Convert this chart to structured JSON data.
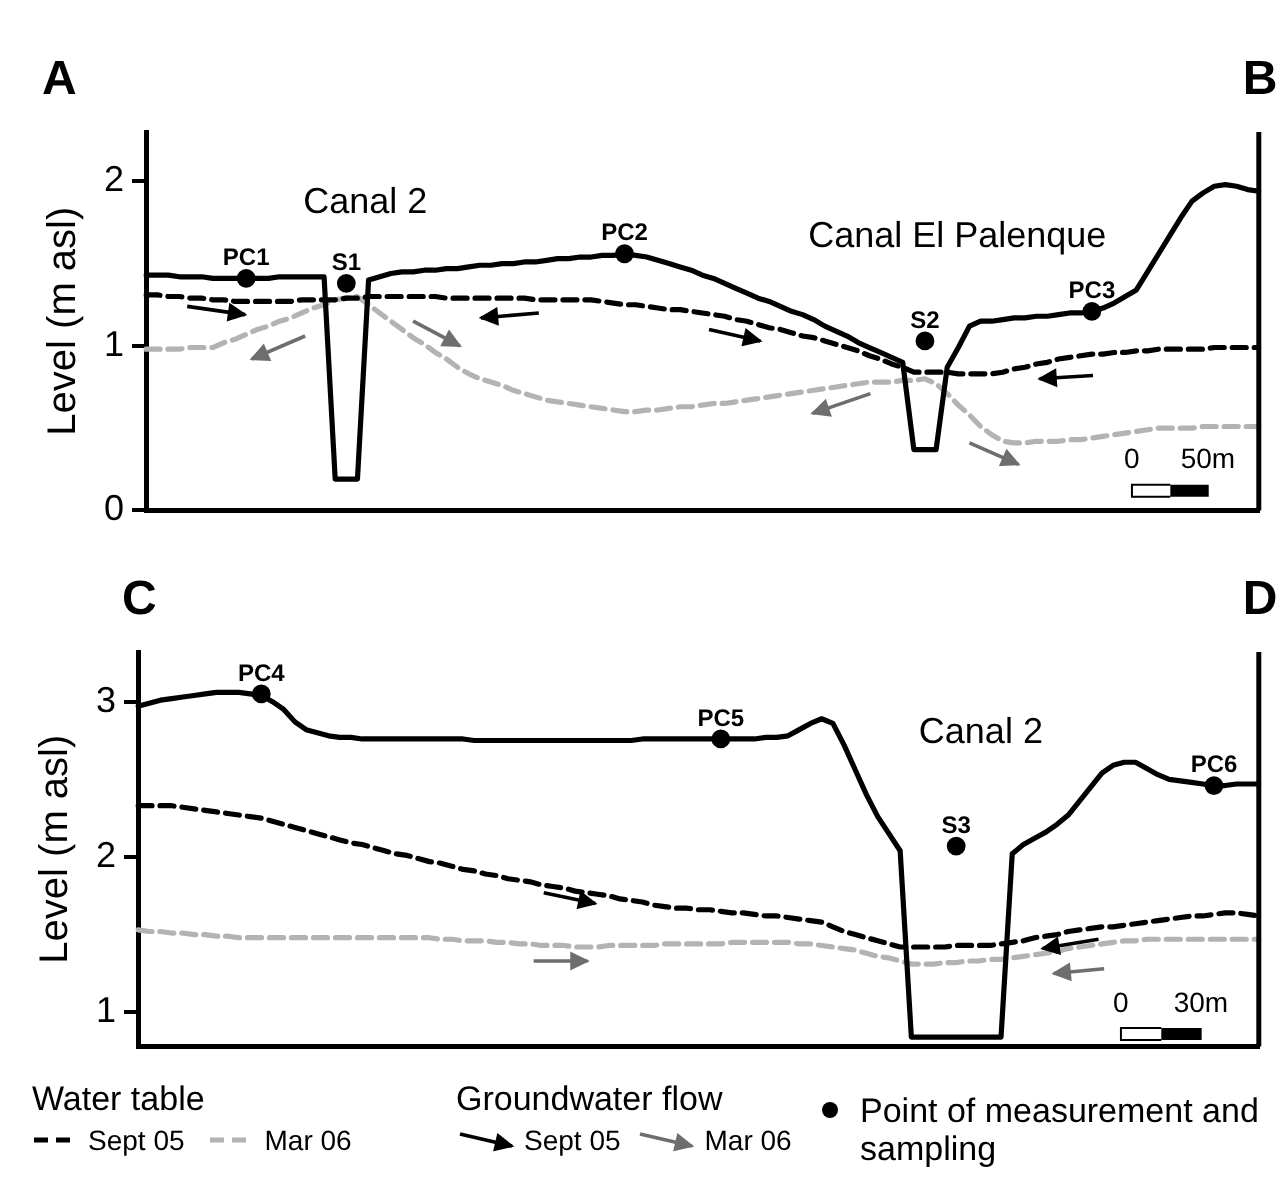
{
  "chart_data": [
    {
      "type": "line",
      "ylabel": "Level (m asl)",
      "categories": [
        null,
        null,
        null,
        null,
        null,
        null,
        null,
        null,
        null,
        null,
        null,
        null,
        null,
        null,
        null,
        null,
        null,
        null,
        null,
        null,
        null,
        null,
        null,
        null,
        null,
        null,
        null,
        null,
        null,
        null,
        null,
        null,
        null,
        null,
        null,
        null,
        null,
        null,
        null,
        null,
        null,
        null,
        null,
        null,
        null,
        null,
        null,
        null,
        null,
        null,
        null,
        null,
        null,
        null,
        null,
        null,
        null,
        null,
        null,
        null,
        null,
        null,
        null,
        null,
        null,
        null,
        null,
        null,
        null,
        null,
        null,
        null,
        null,
        null,
        null,
        null,
        null,
        null,
        null,
        null,
        null,
        null,
        null,
        null,
        null,
        null,
        null,
        null,
        null,
        null,
        null,
        null,
        null,
        null,
        null,
        null,
        null,
        null,
        null,
        null,
        null
      ],
      "ylim": [
        0,
        2.3
      ],
      "yticks": [
        0,
        1,
        2
      ],
      "tick_labels": "y",
      "grid": false,
      "series": [
        {
          "color": "#000000",
          "line_style": "solid",
          "marker": "none",
          "values": [
            1.43,
            1.43,
            1.43,
            1.42,
            1.42,
            1.42,
            1.41,
            1.41,
            1.41,
            1.41,
            1.41,
            1.41,
            1.42,
            1.42,
            1.42,
            1.42,
            1.42,
            0.19,
            0.19,
            0.19,
            1.4,
            1.42,
            1.44,
            1.45,
            1.45,
            1.46,
            1.46,
            1.47,
            1.47,
            1.48,
            1.49,
            1.49,
            1.5,
            1.5,
            1.51,
            1.51,
            1.52,
            1.53,
            1.53,
            1.54,
            1.54,
            1.55,
            1.55,
            1.56,
            1.55,
            1.54,
            1.52,
            1.5,
            1.48,
            1.46,
            1.43,
            1.41,
            1.38,
            1.35,
            1.32,
            1.29,
            1.27,
            1.24,
            1.21,
            1.19,
            1.16,
            1.12,
            1.09,
            1.06,
            1.02,
            0.99,
            0.96,
            0.93,
            0.9,
            0.37,
            0.37,
            0.37,
            0.87,
            0.99,
            1.12,
            1.15,
            1.15,
            1.16,
            1.17,
            1.17,
            1.18,
            1.18,
            1.19,
            1.2,
            1.2,
            1.21,
            1.23,
            1.26,
            1.3,
            1.34,
            1.45,
            1.56,
            1.67,
            1.78,
            1.88,
            1.93,
            1.97,
            1.98,
            1.97,
            1.95,
            1.94
          ]
        },
        {
          "color": "#000000",
          "line_style": "dashed",
          "marker": "none",
          "values": [
            1.31,
            1.31,
            1.3,
            1.3,
            1.29,
            1.29,
            1.28,
            1.28,
            1.27,
            1.27,
            1.27,
            1.27,
            1.27,
            1.27,
            1.28,
            1.28,
            1.28,
            1.28,
            1.29,
            1.29,
            1.3,
            1.3,
            1.3,
            1.3,
            1.3,
            1.3,
            1.3,
            1.29,
            1.29,
            1.29,
            1.29,
            1.29,
            1.29,
            1.29,
            1.29,
            1.28,
            1.28,
            1.28,
            1.28,
            1.28,
            1.28,
            1.27,
            1.26,
            1.25,
            1.25,
            1.24,
            1.23,
            1.22,
            1.22,
            1.21,
            1.2,
            1.19,
            1.18,
            1.16,
            1.15,
            1.13,
            1.11,
            1.1,
            1.08,
            1.06,
            1.05,
            1.03,
            1.01,
            0.99,
            0.97,
            0.94,
            0.92,
            0.89,
            0.87,
            0.84,
            0.84,
            0.84,
            0.84,
            0.83,
            0.83,
            0.83,
            0.83,
            0.84,
            0.86,
            0.87,
            0.89,
            0.9,
            0.92,
            0.93,
            0.94,
            0.95,
            0.95,
            0.96,
            0.96,
            0.97,
            0.97,
            0.98,
            0.98,
            0.98,
            0.98,
            0.98,
            0.99,
            0.99,
            0.99,
            0.99,
            0.99
          ]
        },
        {
          "color": "#b3b3b3",
          "line_style": "dashed",
          "marker": "none",
          "values": [
            0.98,
            0.98,
            0.98,
            0.98,
            0.99,
            0.99,
            0.99,
            1.02,
            1.04,
            1.07,
            1.1,
            1.12,
            1.15,
            1.17,
            1.2,
            1.23,
            1.25,
            1.28,
            1.29,
            1.3,
            1.25,
            1.2,
            1.15,
            1.1,
            1.05,
            1.01,
            0.96,
            0.92,
            0.87,
            0.83,
            0.8,
            0.78,
            0.76,
            0.73,
            0.71,
            0.69,
            0.67,
            0.66,
            0.65,
            0.64,
            0.63,
            0.62,
            0.61,
            0.6,
            0.6,
            0.61,
            0.61,
            0.62,
            0.63,
            0.63,
            0.64,
            0.65,
            0.65,
            0.66,
            0.67,
            0.68,
            0.69,
            0.7,
            0.71,
            0.72,
            0.73,
            0.74,
            0.75,
            0.76,
            0.77,
            0.78,
            0.78,
            0.78,
            0.79,
            0.79,
            0.8,
            0.77,
            0.71,
            0.64,
            0.58,
            0.51,
            0.46,
            0.42,
            0.41,
            0.41,
            0.42,
            0.42,
            0.42,
            0.43,
            0.43,
            0.44,
            0.45,
            0.46,
            0.47,
            0.48,
            0.49,
            0.5,
            0.5,
            0.5,
            0.5,
            0.51,
            0.51,
            0.51,
            0.51,
            0.51,
            0.51
          ]
        },
        {
          "color": "#000000",
          "marker": "circle",
          "values": [
            null,
            null,
            null,
            null,
            null,
            null,
            null,
            null,
            null,
            1.41,
            null,
            null,
            null,
            null,
            null,
            null,
            null,
            null,
            1.38,
            null,
            null,
            null,
            null,
            null,
            null,
            null,
            null,
            null,
            null,
            null,
            null,
            null,
            null,
            null,
            null,
            null,
            null,
            null,
            null,
            null,
            null,
            null,
            null,
            1.56,
            null,
            null,
            null,
            null,
            null,
            null,
            null,
            null,
            null,
            null,
            null,
            null,
            null,
            null,
            null,
            null,
            null,
            null,
            null,
            null,
            null,
            null,
            null,
            null,
            null,
            null,
            1.03,
            null,
            null,
            null,
            null,
            null,
            null,
            null,
            null,
            null,
            null,
            null,
            null,
            null,
            null,
            1.21,
            null,
            null,
            null,
            null,
            null,
            null,
            null,
            null,
            null,
            null,
            null,
            null,
            null,
            null,
            null
          ]
        }
      ],
      "annotations": [
        "A",
        "B",
        "0",
        "50m",
        "Canal 2",
        "Canal El Palenque",
        "PC1",
        "S1",
        "PC2",
        "S2",
        "PC3"
      ]
    },
    {
      "type": "line",
      "ylabel": "Level (m asl)",
      "categories": [
        null,
        null,
        null,
        null,
        null,
        null,
        null,
        null,
        null,
        null,
        null,
        null,
        null,
        null,
        null,
        null,
        null,
        null,
        null,
        null,
        null,
        null,
        null,
        null,
        null,
        null,
        null,
        null,
        null,
        null,
        null,
        null,
        null,
        null,
        null,
        null,
        null,
        null,
        null,
        null,
        null,
        null,
        null,
        null,
        null,
        null,
        null,
        null,
        null,
        null,
        null,
        null,
        null,
        null,
        null,
        null,
        null,
        null,
        null,
        null,
        null,
        null,
        null,
        null,
        null,
        null,
        null,
        null,
        null,
        null,
        null,
        null,
        null,
        null,
        null,
        null,
        null,
        null,
        null,
        null,
        null,
        null,
        null,
        null,
        null,
        null,
        null,
        null,
        null,
        null,
        null,
        null,
        null,
        null,
        null,
        null,
        null,
        null,
        null,
        null,
        null
      ],
      "ylim": [
        0.78,
        3.32
      ],
      "yticks": [
        1,
        2,
        3
      ],
      "tick_labels": "y",
      "grid": false,
      "legend": "bottom",
      "legend_title": "Water table",
      "series": [
        {
          "color": "#000000",
          "line_style": "solid",
          "marker": "none",
          "values": [
            2.97,
            2.99,
            3.01,
            3.02,
            3.03,
            3.04,
            3.05,
            3.06,
            3.06,
            3.06,
            3.05,
            3.04,
            3.0,
            2.95,
            2.87,
            2.82,
            2.8,
            2.78,
            2.77,
            2.77,
            2.76,
            2.76,
            2.76,
            2.76,
            2.76,
            2.76,
            2.76,
            2.76,
            2.76,
            2.76,
            2.75,
            2.75,
            2.75,
            2.75,
            2.75,
            2.75,
            2.75,
            2.75,
            2.75,
            2.75,
            2.75,
            2.75,
            2.75,
            2.75,
            2.75,
            2.76,
            2.76,
            2.76,
            2.76,
            2.76,
            2.76,
            2.76,
            2.76,
            2.76,
            2.76,
            2.76,
            2.77,
            2.77,
            2.78,
            2.82,
            2.86,
            2.89,
            2.86,
            2.72,
            2.56,
            2.4,
            2.26,
            2.15,
            2.04,
            0.84,
            0.84,
            0.84,
            0.84,
            0.84,
            0.84,
            0.84,
            0.84,
            0.84,
            2.02,
            2.08,
            2.12,
            2.16,
            2.21,
            2.27,
            2.36,
            2.45,
            2.54,
            2.59,
            2.61,
            2.61,
            2.57,
            2.53,
            2.5,
            2.49,
            2.48,
            2.47,
            2.46,
            2.46,
            2.47,
            2.47,
            2.47
          ]
        },
        {
          "name": "Sept 05",
          "color": "#000000",
          "line_style": "dashed",
          "marker": "none",
          "values": [
            2.33,
            2.33,
            2.33,
            2.33,
            2.32,
            2.31,
            2.3,
            2.29,
            2.28,
            2.27,
            2.26,
            2.25,
            2.23,
            2.21,
            2.19,
            2.17,
            2.15,
            2.13,
            2.11,
            2.09,
            2.08,
            2.06,
            2.04,
            2.02,
            2.01,
            1.99,
            1.97,
            1.96,
            1.94,
            1.92,
            1.91,
            1.89,
            1.88,
            1.86,
            1.85,
            1.84,
            1.82,
            1.81,
            1.8,
            1.78,
            1.77,
            1.76,
            1.75,
            1.73,
            1.72,
            1.71,
            1.69,
            1.68,
            1.67,
            1.67,
            1.66,
            1.66,
            1.65,
            1.64,
            1.64,
            1.63,
            1.62,
            1.62,
            1.61,
            1.6,
            1.59,
            1.58,
            1.55,
            1.52,
            1.5,
            1.48,
            1.46,
            1.44,
            1.42,
            1.42,
            1.42,
            1.42,
            1.42,
            1.43,
            1.43,
            1.43,
            1.43,
            1.44,
            1.45,
            1.46,
            1.48,
            1.49,
            1.5,
            1.52,
            1.53,
            1.54,
            1.55,
            1.55,
            1.56,
            1.57,
            1.58,
            1.59,
            1.6,
            1.61,
            1.62,
            1.62,
            1.63,
            1.64,
            1.64,
            1.63,
            1.62
          ]
        },
        {
          "name": "Mar 06",
          "color": "#b3b3b3",
          "line_style": "dashed",
          "marker": "none",
          "values": [
            1.53,
            1.52,
            1.52,
            1.51,
            1.51,
            1.5,
            1.5,
            1.49,
            1.49,
            1.48,
            1.48,
            1.48,
            1.48,
            1.48,
            1.48,
            1.48,
            1.48,
            1.48,
            1.48,
            1.48,
            1.48,
            1.48,
            1.48,
            1.48,
            1.48,
            1.48,
            1.48,
            1.47,
            1.47,
            1.46,
            1.46,
            1.46,
            1.45,
            1.45,
            1.44,
            1.44,
            1.43,
            1.43,
            1.43,
            1.42,
            1.42,
            1.42,
            1.43,
            1.43,
            1.43,
            1.43,
            1.43,
            1.44,
            1.44,
            1.44,
            1.44,
            1.44,
            1.44,
            1.45,
            1.45,
            1.45,
            1.45,
            1.45,
            1.45,
            1.44,
            1.44,
            1.43,
            1.42,
            1.41,
            1.4,
            1.38,
            1.36,
            1.35,
            1.33,
            1.31,
            1.31,
            1.31,
            1.32,
            1.32,
            1.33,
            1.33,
            1.34,
            1.34,
            1.35,
            1.36,
            1.37,
            1.38,
            1.39,
            1.41,
            1.42,
            1.43,
            1.44,
            1.45,
            1.46,
            1.46,
            1.47,
            1.47,
            1.47,
            1.47,
            1.47,
            1.47,
            1.47,
            1.47,
            1.47,
            1.47,
            1.47
          ]
        },
        {
          "name": "Point of measurement and sampling",
          "color": "#000000",
          "marker": "circle",
          "values": [
            null,
            null,
            null,
            null,
            null,
            null,
            null,
            null,
            null,
            null,
            null,
            3.05,
            null,
            null,
            null,
            null,
            null,
            null,
            null,
            null,
            null,
            null,
            null,
            null,
            null,
            null,
            null,
            null,
            null,
            null,
            null,
            null,
            null,
            null,
            null,
            null,
            null,
            null,
            null,
            null,
            null,
            null,
            null,
            null,
            null,
            null,
            null,
            null,
            null,
            null,
            null,
            null,
            2.76,
            null,
            null,
            null,
            null,
            null,
            null,
            null,
            null,
            null,
            null,
            null,
            null,
            null,
            null,
            null,
            null,
            null,
            null,
            null,
            null,
            2.07,
            null,
            null,
            null,
            null,
            null,
            null,
            null,
            null,
            null,
            null,
            null,
            null,
            null,
            null,
            null,
            null,
            null,
            null,
            null,
            null,
            null,
            null,
            2.46,
            null,
            null,
            null,
            null
          ]
        }
      ],
      "annotations": [
        "C",
        "D",
        "0",
        "30m",
        "Groundwater flow",
        "Sept 05",
        "Mar 06",
        "Canal 2",
        "PC4",
        "PC5",
        "S3",
        "PC6"
      ]
    }
  ]
}
